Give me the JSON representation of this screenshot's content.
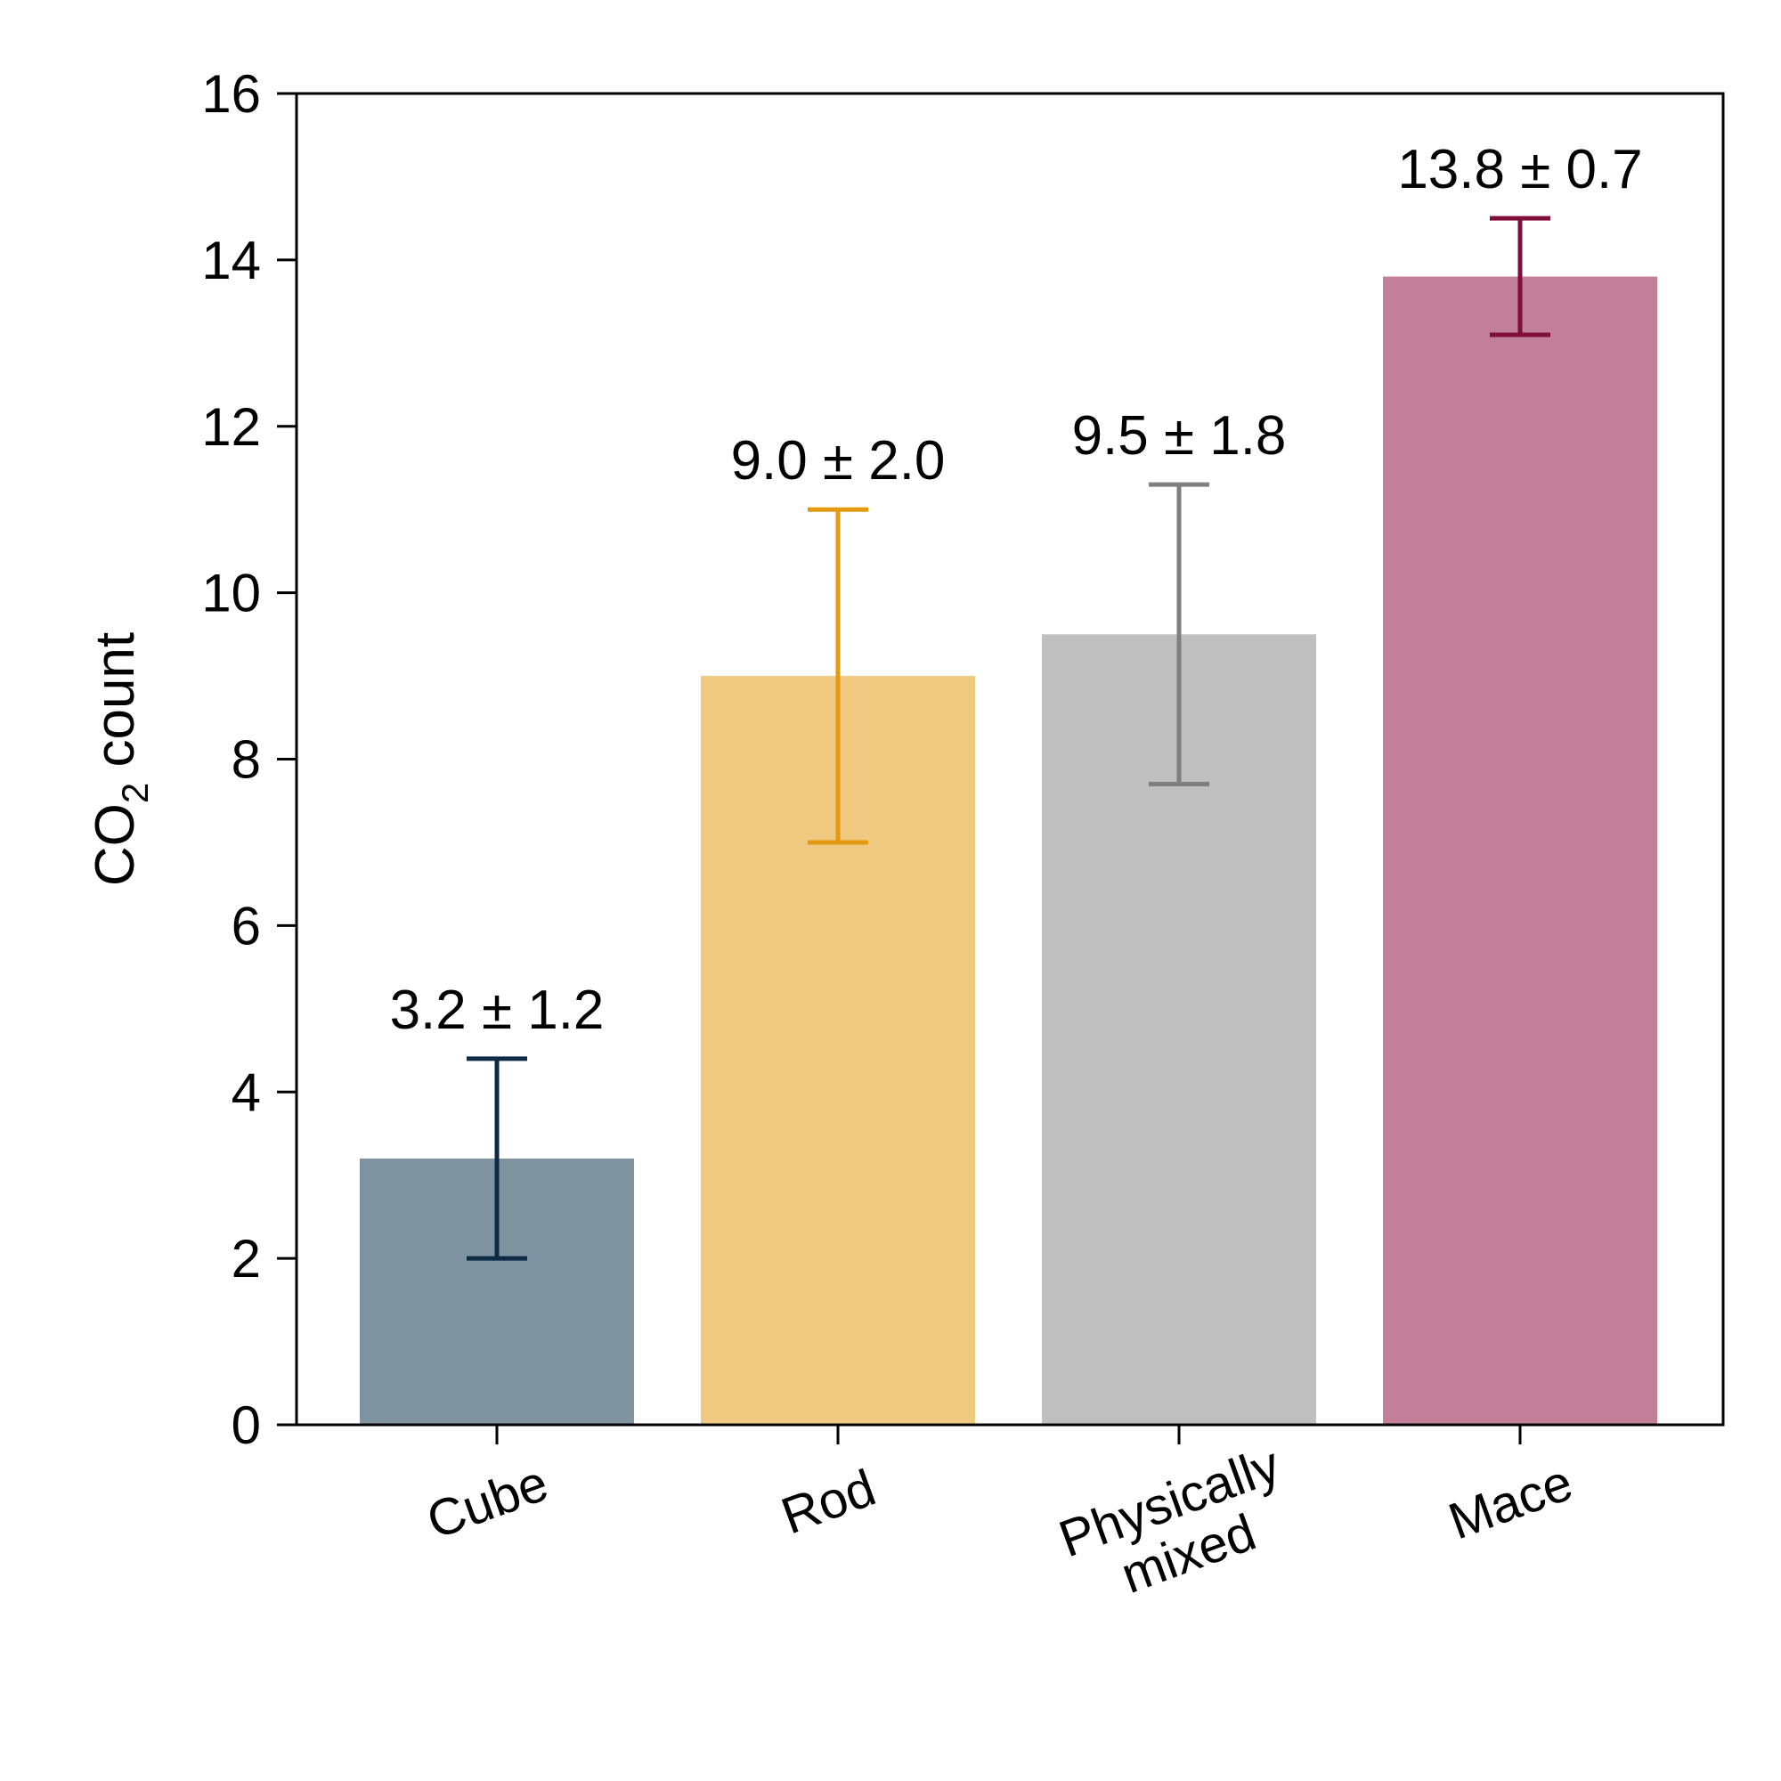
{
  "chart_data": {
    "type": "bar",
    "categories": [
      "Cube",
      "Rod",
      "Physically mixed",
      "Mace"
    ],
    "category_lines": [
      [
        "Cube"
      ],
      [
        "Rod"
      ],
      [
        "Physically",
        "mixed"
      ],
      [
        "Mace"
      ]
    ],
    "values": [
      3.2,
      9.0,
      9.5,
      13.8
    ],
    "errors": [
      1.2,
      2.0,
      1.8,
      0.7
    ],
    "annotations": [
      "3.2 ± 1.2",
      "9.0 ± 2.0",
      "9.5 ± 1.8",
      "13.8 ± 0.7"
    ],
    "bar_colors": [
      "#8093a0",
      "#efc97f",
      "#bfbfbf",
      "#c27f97"
    ],
    "error_colors": [
      "#0f2a45",
      "#e39a10",
      "#7f7f7f",
      "#7e0f3b"
    ],
    "ylabel": {
      "main": "CO",
      "subscript": "2",
      "rest": " count"
    },
    "xlabel": "",
    "ylim": [
      0,
      16
    ],
    "yticks": [
      0,
      2,
      4,
      6,
      8,
      10,
      12,
      14,
      16
    ],
    "ytick_labels": [
      "0",
      "2",
      "4",
      "6",
      "8",
      "10",
      "12",
      "14",
      "16"
    ],
    "grid": false,
    "legend": "none"
  }
}
